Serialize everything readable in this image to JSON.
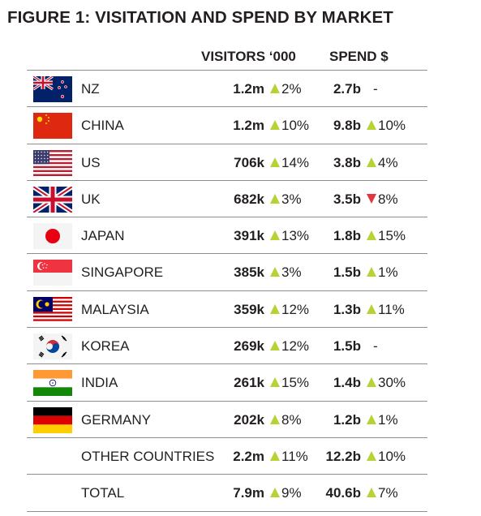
{
  "title": "FIGURE 1: VISITATION AND SPEND BY MARKET",
  "headers": {
    "visitors": "VISITORS ‘000",
    "spend": "SPEND $"
  },
  "colors": {
    "up": "#b5d334",
    "down": "#e0373f",
    "rule": "#8e8e8e"
  },
  "chart_data": {
    "type": "table",
    "title": "FIGURE 1: VISITATION AND SPEND BY MARKET",
    "columns": [
      "VISITORS ‘000",
      "SPEND $"
    ],
    "rows": [
      {
        "flag": "nz-flag-icon",
        "country": "NZ",
        "visitors": "1.2m",
        "visitors_change": "2%",
        "visitors_dir": "up",
        "spend": "2.7b",
        "spend_change": "-",
        "spend_dir": "none"
      },
      {
        "flag": "china-flag-icon",
        "country": "CHINA",
        "visitors": "1.2m",
        "visitors_change": "10%",
        "visitors_dir": "up",
        "spend": "9.8b",
        "spend_change": "10%",
        "spend_dir": "up"
      },
      {
        "flag": "us-flag-icon",
        "country": "US",
        "visitors": "706k",
        "visitors_change": "14%",
        "visitors_dir": "up",
        "spend": "3.8b",
        "spend_change": "4%",
        "spend_dir": "up"
      },
      {
        "flag": "uk-flag-icon",
        "country": "UK",
        "visitors": "682k",
        "visitors_change": "3%",
        "visitors_dir": "up",
        "spend": "3.5b",
        "spend_change": "8%",
        "spend_dir": "down"
      },
      {
        "flag": "japan-flag-icon",
        "country": "JAPAN",
        "visitors": "391k",
        "visitors_change": "13%",
        "visitors_dir": "up",
        "spend": "1.8b",
        "spend_change": "15%",
        "spend_dir": "up"
      },
      {
        "flag": "singapore-flag-icon",
        "country": "SINGAPORE",
        "visitors": "385k",
        "visitors_change": "3%",
        "visitors_dir": "up",
        "spend": "1.5b",
        "spend_change": "1%",
        "spend_dir": "up"
      },
      {
        "flag": "malaysia-flag-icon",
        "country": "MALAYSIA",
        "visitors": "359k",
        "visitors_change": "12%",
        "visitors_dir": "up",
        "spend": "1.3b",
        "spend_change": "11%",
        "spend_dir": "up"
      },
      {
        "flag": "korea-flag-icon",
        "country": "KOREA",
        "visitors": "269k",
        "visitors_change": "12%",
        "visitors_dir": "up",
        "spend": "1.5b",
        "spend_change": "-",
        "spend_dir": "none"
      },
      {
        "flag": "india-flag-icon",
        "country": "INDIA",
        "visitors": "261k",
        "visitors_change": "15%",
        "visitors_dir": "up",
        "spend": "1.4b",
        "spend_change": "30%",
        "spend_dir": "up"
      },
      {
        "flag": "germany-flag-icon",
        "country": "GERMANY",
        "visitors": "202k",
        "visitors_change": "8%",
        "visitors_dir": "up",
        "spend": "1.2b",
        "spend_change": "1%",
        "spend_dir": "up"
      },
      {
        "flag": "",
        "country": "OTHER COUNTRIES",
        "visitors": "2.2m",
        "visitors_change": "11%",
        "visitors_dir": "up",
        "spend": "12.2b",
        "spend_change": "10%",
        "spend_dir": "up"
      },
      {
        "flag": "",
        "country": "TOTAL",
        "visitors": "7.9m",
        "visitors_change": "9%",
        "visitors_dir": "up",
        "spend": "40.6b",
        "spend_change": "7%",
        "spend_dir": "up"
      }
    ]
  }
}
